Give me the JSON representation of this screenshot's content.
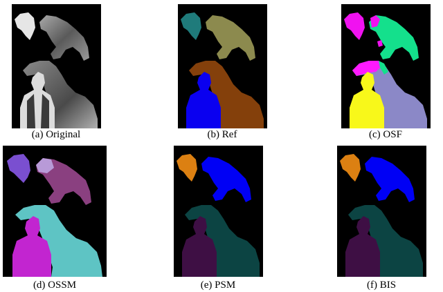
{
  "figure": {
    "panels": [
      {
        "id": "a",
        "caption": "(a) Original"
      },
      {
        "id": "b",
        "caption": "(b) Ref"
      },
      {
        "id": "c",
        "caption": "(c) OSF"
      },
      {
        "id": "d",
        "caption": "(d) OSSM"
      },
      {
        "id": "e",
        "caption": "(e) PSM"
      },
      {
        "id": "f",
        "caption": "(f) BIS"
      }
    ]
  },
  "colors": {
    "background": "#000000",
    "ref": {
      "small_animal": "#1f7b7b",
      "large_animal": "#8c8a4e",
      "person": "#0a00f0",
      "dinosaur": "#84400b"
    },
    "osf": {
      "small_animal": "#f012f0",
      "large_animal": "#14e08c",
      "person": "#f8f81a",
      "dinosaur": "#8b88c7",
      "overlap": "#ff1aff"
    },
    "ossm": {
      "small_animal": "#7a4fd0",
      "large_animal": "#8a4080",
      "person": "#c225d0",
      "dinosaur": "#5ec4c4",
      "small_animal_2": "#b89ad8"
    },
    "psm": {
      "small_animal": "#dc8012",
      "large_animal": "#0000f5",
      "person": "#3e0f44",
      "dinosaur": "#0c4443"
    },
    "bis": {
      "small_animal": "#dc8012",
      "large_animal": "#0000f5",
      "person": "#3e0f44",
      "dinosaur": "#0c4443"
    }
  }
}
